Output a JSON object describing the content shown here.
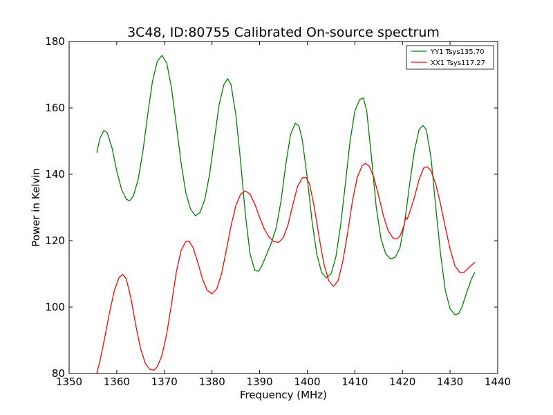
{
  "chart_data": {
    "type": "line",
    "title": "3C48, ID:80755 Calibrated On-source spectrum",
    "xlabel": "Frequency (MHz)",
    "ylabel": "Power in Kelvin",
    "xlim": [
      1350,
      1440
    ],
    "ylim": [
      80,
      180
    ],
    "xticks": [
      1350,
      1360,
      1370,
      1380,
      1390,
      1400,
      1410,
      1420,
      1430,
      1440
    ],
    "yticks": [
      80,
      100,
      120,
      140,
      160,
      180
    ],
    "grid": false,
    "legend_position": "top-right",
    "series": [
      {
        "name": "YY1 Tsys135.70",
        "color": "#008000",
        "points": [
          [
            1355.8,
            146.5
          ],
          [
            1356.5,
            151.0
          ],
          [
            1357.3,
            153.2
          ],
          [
            1358.0,
            152.5
          ],
          [
            1359.0,
            148.0
          ],
          [
            1360.0,
            141.0
          ],
          [
            1361.0,
            135.5
          ],
          [
            1362.0,
            132.5
          ],
          [
            1362.7,
            132.0
          ],
          [
            1363.5,
            133.5
          ],
          [
            1364.5,
            138.5
          ],
          [
            1365.5,
            147.0
          ],
          [
            1366.5,
            158.0
          ],
          [
            1367.5,
            168.0
          ],
          [
            1368.5,
            174.0
          ],
          [
            1369.5,
            175.8
          ],
          [
            1370.5,
            173.5
          ],
          [
            1371.5,
            166.0
          ],
          [
            1372.5,
            155.0
          ],
          [
            1373.5,
            143.5
          ],
          [
            1374.5,
            134.5
          ],
          [
            1375.5,
            129.5
          ],
          [
            1376.5,
            127.5
          ],
          [
            1377.5,
            128.5
          ],
          [
            1378.5,
            132.5
          ],
          [
            1379.5,
            140.0
          ],
          [
            1380.5,
            150.5
          ],
          [
            1381.5,
            161.0
          ],
          [
            1382.5,
            167.0
          ],
          [
            1383.3,
            168.8
          ],
          [
            1384.0,
            167.0
          ],
          [
            1385.0,
            158.0
          ],
          [
            1386.0,
            144.0
          ],
          [
            1387.0,
            128.0
          ],
          [
            1388.0,
            116.0
          ],
          [
            1389.0,
            111.0
          ],
          [
            1389.8,
            110.8
          ],
          [
            1390.5,
            112.5
          ],
          [
            1391.5,
            116.0
          ],
          [
            1392.5,
            119.5
          ],
          [
            1393.5,
            124.0
          ],
          [
            1394.5,
            132.0
          ],
          [
            1395.5,
            143.0
          ],
          [
            1396.5,
            152.0
          ],
          [
            1397.5,
            155.4
          ],
          [
            1398.3,
            154.5
          ],
          [
            1399.0,
            150.0
          ],
          [
            1400.0,
            139.0
          ],
          [
            1401.0,
            126.0
          ],
          [
            1402.0,
            116.0
          ],
          [
            1403.0,
            110.5
          ],
          [
            1404.0,
            108.8
          ],
          [
            1405.0,
            110.0
          ],
          [
            1406.0,
            115.0
          ],
          [
            1407.0,
            124.5
          ],
          [
            1408.0,
            137.0
          ],
          [
            1409.0,
            150.0
          ],
          [
            1410.0,
            159.0
          ],
          [
            1411.0,
            162.5
          ],
          [
            1411.8,
            163.0
          ],
          [
            1412.5,
            159.0
          ],
          [
            1413.5,
            145.0
          ],
          [
            1414.5,
            130.0
          ],
          [
            1415.5,
            120.5
          ],
          [
            1416.5,
            116.0
          ],
          [
            1417.5,
            114.5
          ],
          [
            1418.5,
            115.0
          ],
          [
            1419.5,
            118.0
          ],
          [
            1420.5,
            126.0
          ],
          [
            1421.5,
            137.0
          ],
          [
            1422.5,
            147.0
          ],
          [
            1423.5,
            153.5
          ],
          [
            1424.3,
            154.7
          ],
          [
            1425.0,
            153.5
          ],
          [
            1426.0,
            145.0
          ],
          [
            1427.0,
            130.0
          ],
          [
            1428.0,
            116.0
          ],
          [
            1429.0,
            105.0
          ],
          [
            1430.0,
            99.5
          ],
          [
            1431.0,
            97.7
          ],
          [
            1431.8,
            98.0
          ],
          [
            1432.5,
            100.0
          ],
          [
            1433.5,
            104.5
          ],
          [
            1434.5,
            108.5
          ],
          [
            1435.2,
            110.5
          ]
        ]
      },
      {
        "name": "XX1 Tsys117.27",
        "color": "#ff0000",
        "points": [
          [
            1355.8,
            80.0
          ],
          [
            1356.5,
            84.0
          ],
          [
            1357.5,
            91.0
          ],
          [
            1358.5,
            98.5
          ],
          [
            1359.5,
            105.0
          ],
          [
            1360.5,
            109.0
          ],
          [
            1361.3,
            109.8
          ],
          [
            1362.0,
            108.5
          ],
          [
            1363.0,
            102.5
          ],
          [
            1364.0,
            94.5
          ],
          [
            1365.0,
            87.5
          ],
          [
            1366.0,
            83.0
          ],
          [
            1367.0,
            81.2
          ],
          [
            1367.8,
            81.0
          ],
          [
            1368.5,
            82.0
          ],
          [
            1369.5,
            85.5
          ],
          [
            1370.5,
            92.0
          ],
          [
            1371.5,
            101.0
          ],
          [
            1372.5,
            110.5
          ],
          [
            1373.5,
            117.0
          ],
          [
            1374.5,
            119.8
          ],
          [
            1375.2,
            119.8
          ],
          [
            1376.0,
            118.0
          ],
          [
            1377.0,
            113.5
          ],
          [
            1378.0,
            108.5
          ],
          [
            1379.0,
            105.0
          ],
          [
            1380.0,
            104.0
          ],
          [
            1381.0,
            105.5
          ],
          [
            1382.0,
            110.0
          ],
          [
            1383.0,
            117.0
          ],
          [
            1384.0,
            124.5
          ],
          [
            1385.0,
            130.5
          ],
          [
            1386.0,
            134.0
          ],
          [
            1387.0,
            135.0
          ],
          [
            1388.0,
            134.0
          ],
          [
            1389.0,
            131.0
          ],
          [
            1390.0,
            127.0
          ],
          [
            1391.0,
            123.5
          ],
          [
            1392.0,
            121.0
          ],
          [
            1393.0,
            119.7
          ],
          [
            1394.0,
            119.5
          ],
          [
            1395.0,
            121.0
          ],
          [
            1396.0,
            125.0
          ],
          [
            1397.0,
            131.0
          ],
          [
            1398.0,
            136.5
          ],
          [
            1399.0,
            139.0
          ],
          [
            1399.8,
            139.0
          ],
          [
            1400.5,
            137.0
          ],
          [
            1401.5,
            130.0
          ],
          [
            1402.5,
            121.0
          ],
          [
            1403.5,
            113.0
          ],
          [
            1404.5,
            108.0
          ],
          [
            1405.5,
            106.2
          ],
          [
            1406.5,
            108.0
          ],
          [
            1407.5,
            114.0
          ],
          [
            1408.5,
            122.5
          ],
          [
            1409.5,
            132.0
          ],
          [
            1410.5,
            139.0
          ],
          [
            1411.5,
            142.5
          ],
          [
            1412.2,
            143.3
          ],
          [
            1413.0,
            142.5
          ],
          [
            1414.0,
            139.0
          ],
          [
            1415.0,
            133.5
          ],
          [
            1416.0,
            127.5
          ],
          [
            1417.0,
            123.0
          ],
          [
            1418.0,
            120.8
          ],
          [
            1418.8,
            120.5
          ],
          [
            1419.5,
            121.5
          ],
          [
            1420.3,
            124.5
          ],
          [
            1420.7,
            127.0
          ],
          [
            1421.0,
            126.5
          ],
          [
            1421.5,
            128.5
          ],
          [
            1422.5,
            133.0
          ],
          [
            1423.5,
            138.5
          ],
          [
            1424.5,
            142.0
          ],
          [
            1425.2,
            142.3
          ],
          [
            1426.0,
            141.0
          ],
          [
            1427.0,
            137.0
          ],
          [
            1428.0,
            131.0
          ],
          [
            1429.0,
            124.0
          ],
          [
            1430.0,
            117.5
          ],
          [
            1431.0,
            112.5
          ],
          [
            1432.0,
            110.5
          ],
          [
            1433.0,
            110.5
          ],
          [
            1434.0,
            112.0
          ],
          [
            1435.2,
            113.5
          ]
        ]
      }
    ]
  }
}
